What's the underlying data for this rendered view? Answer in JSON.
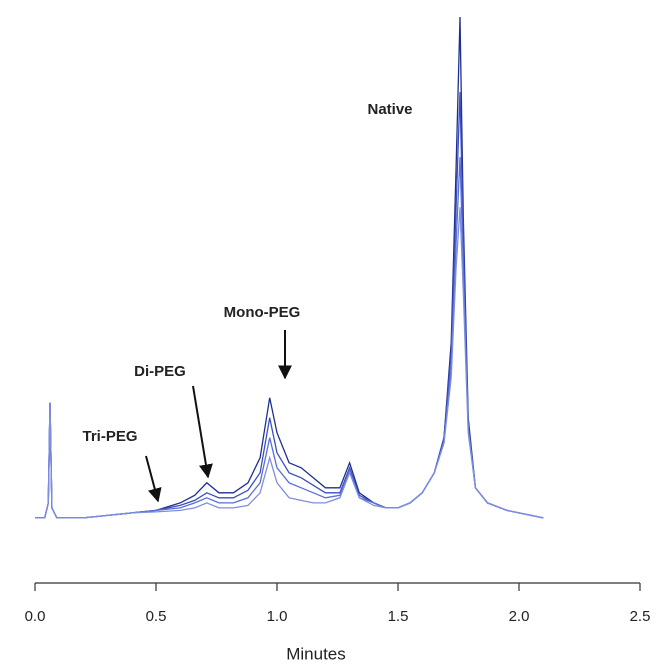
{
  "chart_data": {
    "type": "line",
    "x_label": "Minutes",
    "annotations": [
      "Native",
      "Mono-PEG",
      "Di-PEG",
      "Tri-PEG"
    ],
    "xlim": [
      0,
      2.5
    ],
    "xticks": [
      {
        "value": 0,
        "label": "0.0"
      },
      0.5,
      {
        "value": 1,
        "label": "1.0"
      },
      1.5,
      {
        "value": 2,
        "label": "2.0"
      },
      2.5
    ],
    "ylim": [
      -13,
      100
    ],
    "x": [
      0,
      0.04,
      0.055,
      0.062,
      0.07,
      0.09,
      0.2,
      0.3,
      0.4,
      0.5,
      0.6,
      0.66,
      0.71,
      0.76,
      0.82,
      0.88,
      0.93,
      0.97,
      1.0,
      1.05,
      1.1,
      1.15,
      1.2,
      1.26,
      1.3,
      1.34,
      1.4,
      1.45,
      1.5,
      1.55,
      1.6,
      1.65,
      1.69,
      1.72,
      1.74,
      1.756,
      1.77,
      1.79,
      1.82,
      1.87,
      1.95,
      2.05,
      2.1
    ],
    "series": [
      {
        "color": "#1f2f8f",
        "values": [
          0,
          0,
          3,
          23,
          2,
          0,
          0,
          0.5,
          1,
          1.5,
          3,
          4.5,
          7,
          5,
          5,
          7,
          12,
          24,
          17,
          11,
          10,
          8,
          6,
          6,
          11,
          5,
          3,
          2,
          2,
          3,
          5,
          9,
          16,
          35,
          70,
          100,
          60,
          20,
          6,
          3,
          1.5,
          0.5,
          0
        ]
      },
      {
        "color": "#3a4fbf",
        "values": [
          0,
          0,
          3,
          23,
          2,
          0,
          0,
          0.5,
          1,
          1.5,
          2.5,
          3.5,
          5,
          4,
          4,
          5.5,
          9,
          20,
          13,
          9,
          8,
          6.5,
          5,
          5,
          10,
          4.5,
          3,
          2,
          2,
          3,
          5,
          9,
          16,
          33,
          62,
          85,
          55,
          19,
          6,
          3,
          1.5,
          0.5,
          0
        ]
      },
      {
        "color": "#5a6fd6",
        "values": [
          0,
          0,
          3,
          23,
          2,
          0,
          0,
          0.5,
          1,
          1.5,
          2,
          3,
          4,
          3,
          3,
          4,
          7,
          16,
          10,
          7,
          6,
          5,
          4,
          4.5,
          9.5,
          4,
          3,
          2,
          2,
          3,
          5,
          9,
          15,
          30,
          55,
          72,
          50,
          18,
          6,
          3,
          1.5,
          0.5,
          0
        ]
      },
      {
        "color": "#7f8fe0",
        "values": [
          0,
          0,
          3,
          23,
          2,
          0,
          0,
          0.5,
          1,
          1.2,
          1.5,
          2,
          3,
          2,
          2,
          2.5,
          5,
          12,
          7,
          4,
          3.5,
          3,
          3,
          4,
          9,
          4,
          2.5,
          2,
          2,
          3,
          5,
          9,
          15,
          28,
          50,
          62,
          45,
          17,
          6,
          3,
          1.5,
          0.5,
          0
        ]
      }
    ]
  }
}
